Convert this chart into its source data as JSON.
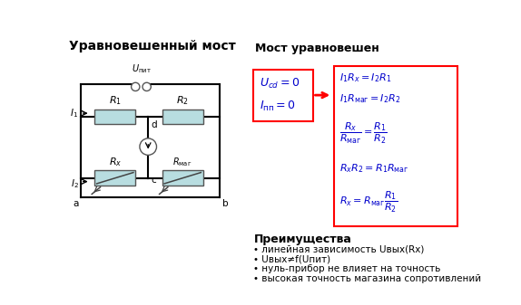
{
  "title_left": "Уравновешенный мост",
  "title_right": "Мост уравновешен",
  "bg_color": "#ffffff",
  "resistor_fill": "#b8dde0",
  "resistor_edge": "#555555",
  "wire_color": "#000000",
  "formula_color": "#0000cc",
  "arrow_color": "#cc0000",
  "advantages_title": "Преимущества",
  "advantages": [
    "• линейная зависимость Uвых(Rх)",
    "• Uвых≠f(Uпит)",
    "• нуль-прибор не влияет на точность",
    "• высокая точность магазина сопротивлений"
  ]
}
